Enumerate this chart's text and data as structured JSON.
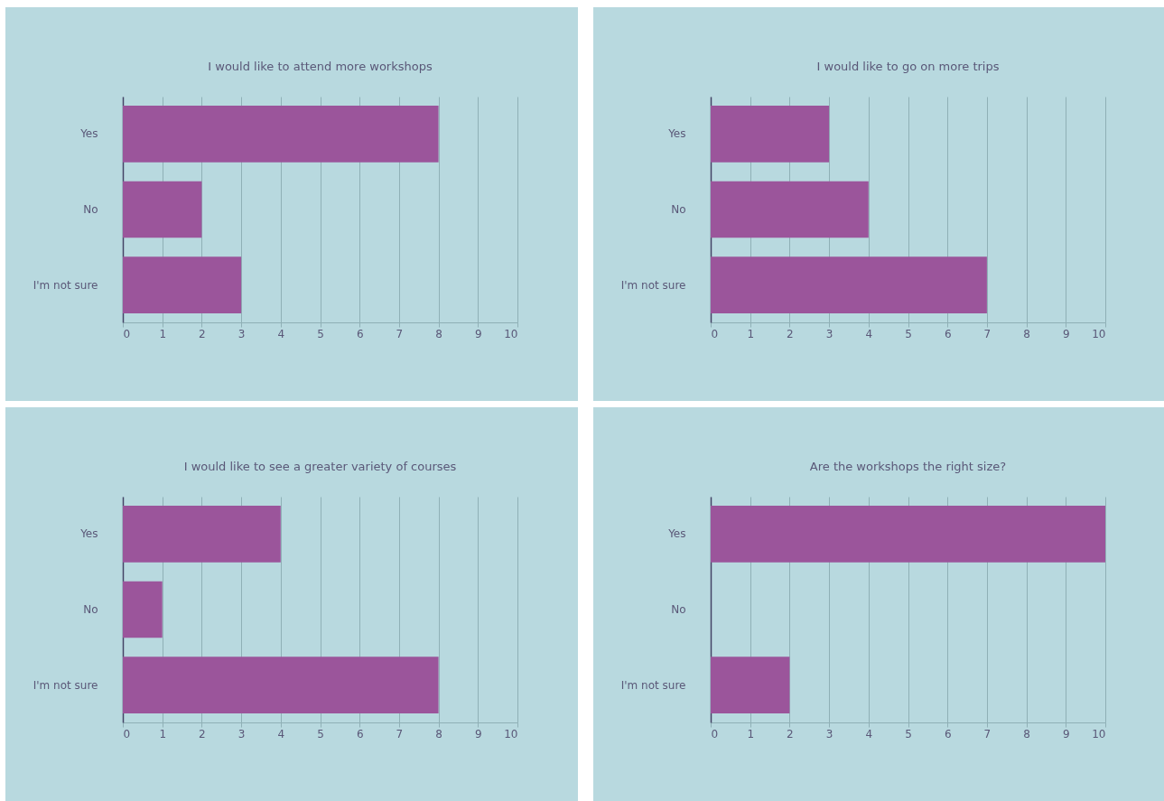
{
  "chart_data": [
    {
      "type": "bar",
      "orientation": "horizontal",
      "title": "I would like to attend more workshops",
      "categories": [
        "Yes",
        "No",
        "I'm not sure"
      ],
      "values": [
        8,
        2,
        3
      ],
      "color": "#9b559b",
      "xlim": [
        0,
        10
      ],
      "xticks": [
        0,
        1,
        2,
        3,
        4,
        5,
        6,
        7,
        8,
        9,
        10
      ],
      "grid": "x"
    },
    {
      "type": "bar",
      "orientation": "horizontal",
      "title": "I would like to go on more trips",
      "categories": [
        "Yes",
        "No",
        "I'm not sure"
      ],
      "values": [
        3,
        4,
        7
      ],
      "color": "#9b559b",
      "xlim": [
        0,
        10
      ],
      "xticks": [
        0,
        1,
        2,
        3,
        4,
        5,
        6,
        7,
        8,
        9,
        10
      ],
      "grid": "x"
    },
    {
      "type": "bar",
      "orientation": "horizontal",
      "title": "I would like to see a greater variety of courses",
      "categories": [
        "Yes",
        "No",
        "I'm not sure"
      ],
      "values": [
        4,
        1,
        8
      ],
      "color": "#9b559b",
      "xlim": [
        0,
        10
      ],
      "xticks": [
        0,
        1,
        2,
        3,
        4,
        5,
        6,
        7,
        8,
        9,
        10
      ],
      "grid": "x"
    },
    {
      "type": "bar",
      "orientation": "horizontal",
      "title": "Are the workshops the right size?",
      "categories": [
        "Yes",
        "No",
        "I'm not sure"
      ],
      "values": [
        10,
        0,
        2
      ],
      "color": "#9b559b",
      "xlim": [
        0,
        10
      ],
      "xticks": [
        0,
        1,
        2,
        3,
        4,
        5,
        6,
        7,
        8,
        9,
        10
      ],
      "grid": "x"
    }
  ]
}
